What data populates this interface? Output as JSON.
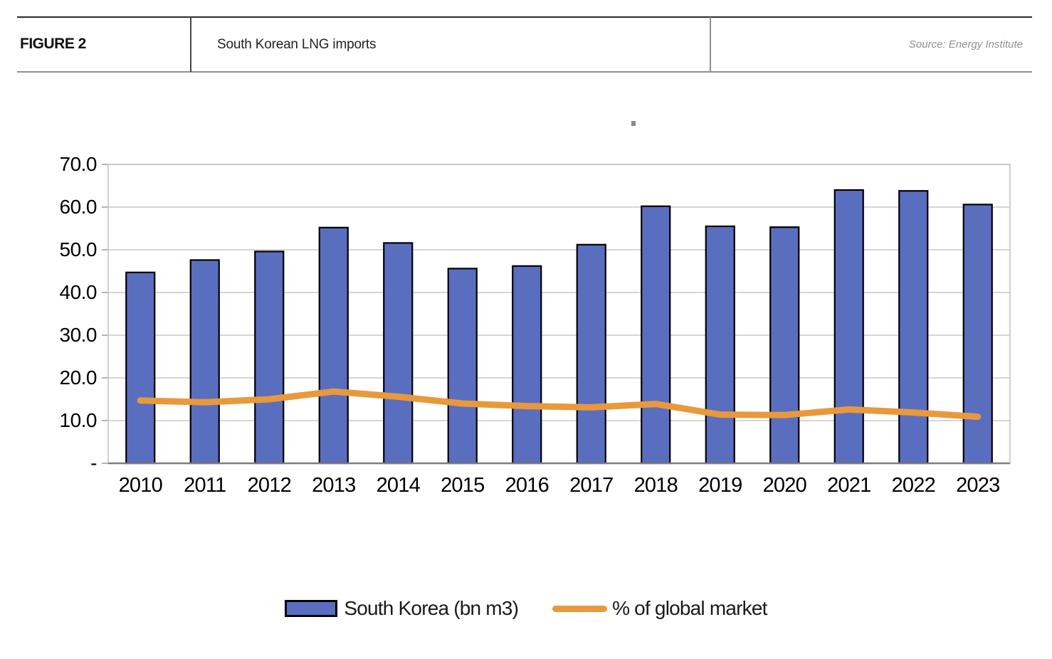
{
  "header": {
    "figure_label": "FIGURE 2",
    "title": "South Korean LNG imports",
    "source": "Source: Energy Institute"
  },
  "colors": {
    "bar_fill": "#5a6ec0",
    "bar_border": "#000000",
    "line": "#e8993c",
    "gridline": "#c9c9c9",
    "plot_border": "#c0c0c0",
    "axis_line": "#7f7f7f",
    "tick": "#9b9b9b",
    "text": "#000000",
    "source_text": "#909090"
  },
  "chart_data": {
    "type": "bar",
    "title": "South Korean LNG imports",
    "categories": [
      "2010",
      "2011",
      "2012",
      "2013",
      "2014",
      "2015",
      "2016",
      "2017",
      "2018",
      "2019",
      "2020",
      "2021",
      "2022",
      "2023"
    ],
    "series": [
      {
        "name": "South Korea (bn m3)",
        "type": "bar",
        "values": [
          44.7,
          47.6,
          49.6,
          55.2,
          51.6,
          45.6,
          46.2,
          51.2,
          60.2,
          55.5,
          55.3,
          64.0,
          63.8,
          60.6
        ]
      },
      {
        "name": "% of global market",
        "type": "line",
        "values": [
          14.7,
          14.3,
          15.0,
          16.8,
          15.6,
          14.0,
          13.4,
          13.1,
          13.9,
          11.4,
          11.3,
          12.6,
          11.9,
          10.9
        ]
      }
    ],
    "xlabel": "",
    "ylabel": "",
    "ylim": [
      0,
      70
    ],
    "y_ticks": [
      "70.0",
      "60.0",
      "50.0",
      "40.0",
      "30.0",
      "20.0",
      "10.0",
      "-"
    ],
    "grid": true,
    "legend_position": "bottom"
  },
  "legend": {
    "bar_label": "South Korea (bn m3)",
    "line_label": "% of global market"
  }
}
